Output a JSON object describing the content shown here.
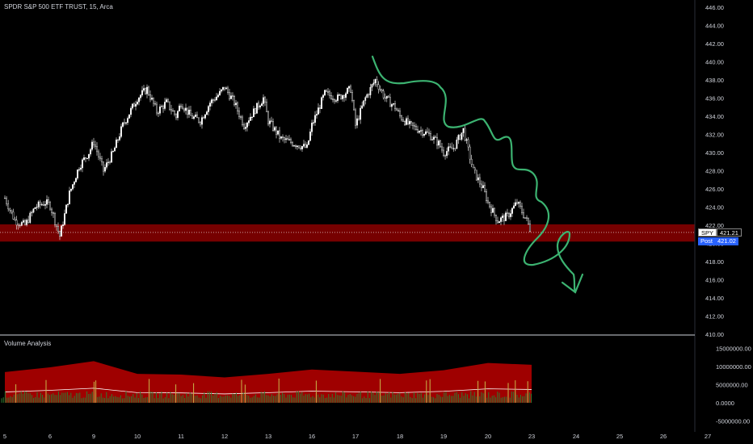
{
  "header": {
    "symbol_title": "SPDR S&P 500 ETF TRUST, 15, Arca",
    "volume_title": "Volume Analysis"
  },
  "badges": {
    "last_label": "SPY",
    "last_value": "421.21",
    "post_label": "Post",
    "post_value": "421.02"
  },
  "colors": {
    "background": "#000000",
    "candles": "#ffffff",
    "zone": "#8b0000",
    "drawing": "#3cb371",
    "post_badge": "#2962ff",
    "volume_area": "#b00000",
    "volume_bars": "#2e7d32",
    "volume_spikes": "#c8b84a"
  },
  "chart_data": [
    {
      "type": "candlestick",
      "title": "SPDR S&P 500 ETF TRUST, 15, Arca",
      "x_tick_labels": [
        "5",
        "6",
        "9",
        "10",
        "11",
        "12",
        "13",
        "16",
        "17",
        "18",
        "19",
        "20",
        "23",
        "24",
        "25",
        "26",
        "27"
      ],
      "y_tick_labels": [
        "410.00",
        "412.00",
        "414.00",
        "416.00",
        "418.00",
        "420.00",
        "422.00",
        "424.00",
        "426.00",
        "428.00",
        "430.00",
        "432.00",
        "434.00",
        "436.00",
        "438.00",
        "440.00",
        "442.00",
        "444.00",
        "446.00"
      ],
      "ylim": [
        410,
        446.8
      ],
      "last_price": 421.21,
      "post_price": 421.02,
      "support_zone": [
        420.2,
        422.1
      ],
      "close_path": [
        {
          "x": "5",
          "y": 425.0
        },
        {
          "x": "5",
          "y": 422.5
        },
        {
          "x": "5",
          "y": 422.0
        },
        {
          "x": "5",
          "y": 424.0
        },
        {
          "x": "5",
          "y": 424.5
        },
        {
          "x": "6",
          "y": 424.2
        },
        {
          "x": "6",
          "y": 420.8
        },
        {
          "x": "6",
          "y": 425.5
        },
        {
          "x": "6",
          "y": 428.5
        },
        {
          "x": "6",
          "y": 430.0
        },
        {
          "x": "9",
          "y": 431.2
        },
        {
          "x": "9",
          "y": 428.0
        },
        {
          "x": "9",
          "y": 430.0
        },
        {
          "x": "9",
          "y": 433.0
        },
        {
          "x": "9",
          "y": 435.0
        },
        {
          "x": "10",
          "y": 436.0
        },
        {
          "x": "10",
          "y": 437.0
        },
        {
          "x": "10",
          "y": 434.5
        },
        {
          "x": "10",
          "y": 435.5
        },
        {
          "x": "10",
          "y": 434.0
        },
        {
          "x": "11",
          "y": 435.5
        },
        {
          "x": "11",
          "y": 434.0
        },
        {
          "x": "11",
          "y": 433.5
        },
        {
          "x": "11",
          "y": 435.5
        },
        {
          "x": "11",
          "y": 436.5
        },
        {
          "x": "12",
          "y": 437.2
        },
        {
          "x": "12",
          "y": 435.5
        },
        {
          "x": "12",
          "y": 433.0
        },
        {
          "x": "12",
          "y": 434.5
        },
        {
          "x": "12",
          "y": 436.0
        },
        {
          "x": "13",
          "y": 433.5
        },
        {
          "x": "13",
          "y": 431.5
        },
        {
          "x": "13",
          "y": 431.0
        },
        {
          "x": "13",
          "y": 430.5
        },
        {
          "x": "16",
          "y": 433.0
        },
        {
          "x": "16",
          "y": 436.5
        },
        {
          "x": "16",
          "y": 436.0
        },
        {
          "x": "16",
          "y": 437.0
        },
        {
          "x": "17",
          "y": 433.0
        },
        {
          "x": "17",
          "y": 436.0
        },
        {
          "x": "17",
          "y": 438.0
        },
        {
          "x": "17",
          "y": 436.0
        },
        {
          "x": "17",
          "y": 435.0
        },
        {
          "x": "18",
          "y": 434.0
        },
        {
          "x": "18",
          "y": 433.0
        },
        {
          "x": "18",
          "y": 432.5
        },
        {
          "x": "18",
          "y": 432.0
        },
        {
          "x": "18",
          "y": 431.0
        },
        {
          "x": "19",
          "y": 430.0
        },
        {
          "x": "19",
          "y": 430.5
        },
        {
          "x": "19",
          "y": 432.5
        },
        {
          "x": "19",
          "y": 428.0
        },
        {
          "x": "19",
          "y": 426.0
        },
        {
          "x": "20",
          "y": 424.5
        },
        {
          "x": "20",
          "y": 422.5
        },
        {
          "x": "20",
          "y": 423.0
        },
        {
          "x": "20",
          "y": 424.5
        },
        {
          "x": "20",
          "y": 422.5
        },
        {
          "x": "23",
          "y": 421.2
        }
      ]
    },
    {
      "type": "area",
      "title": "Volume Analysis",
      "y_tick_labels": [
        "15000000.00",
        "10000000.00",
        "5000000.00",
        "0.0000",
        "-5000000.00"
      ],
      "ylim": [
        -6500000,
        16500000
      ],
      "series": [
        {
          "values_by_x": [
            {
              "x": "5",
              "y": 8500000
            },
            {
              "x": "6",
              "y": 9800000
            },
            {
              "x": "9",
              "y": 11500000
            },
            {
              "x": "10",
              "y": 8000000
            },
            {
              "x": "11",
              "y": 7800000
            },
            {
              "x": "12",
              "y": 7000000
            },
            {
              "x": "13",
              "y": 8000000
            },
            {
              "x": "16",
              "y": 9200000
            },
            {
              "x": "17",
              "y": 8600000
            },
            {
              "x": "18",
              "y": 8000000
            },
            {
              "x": "19",
              "y": 9000000
            },
            {
              "x": "20",
              "y": 11000000
            },
            {
              "x": "23",
              "y": 10500000
            }
          ]
        }
      ]
    }
  ]
}
